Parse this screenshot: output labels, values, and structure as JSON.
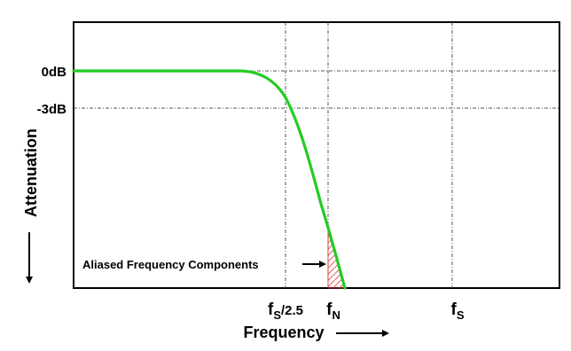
{
  "chart_data": {
    "type": "line",
    "title": "",
    "xlabel": "Frequency",
    "ylabel": "Attenuation",
    "ytick_labels": {
      "zero": "0dB",
      "minus3": "-3dB"
    },
    "xtick_labels": [
      {
        "main": "f",
        "sub": "S",
        "suffix": "/2.5"
      },
      {
        "main": "f",
        "sub": "N",
        "suffix": ""
      },
      {
        "main": "f",
        "sub": "S",
        "suffix": ""
      }
    ],
    "x_gridlines": [
      "fS/2.5",
      "fN",
      "fS"
    ],
    "y_gridlines": [
      "0dB",
      "-3dB"
    ],
    "annotation": "Aliased Frequency Components",
    "curve_color": "#22cc22",
    "hatch_color": "#dd3333",
    "grid": true
  }
}
